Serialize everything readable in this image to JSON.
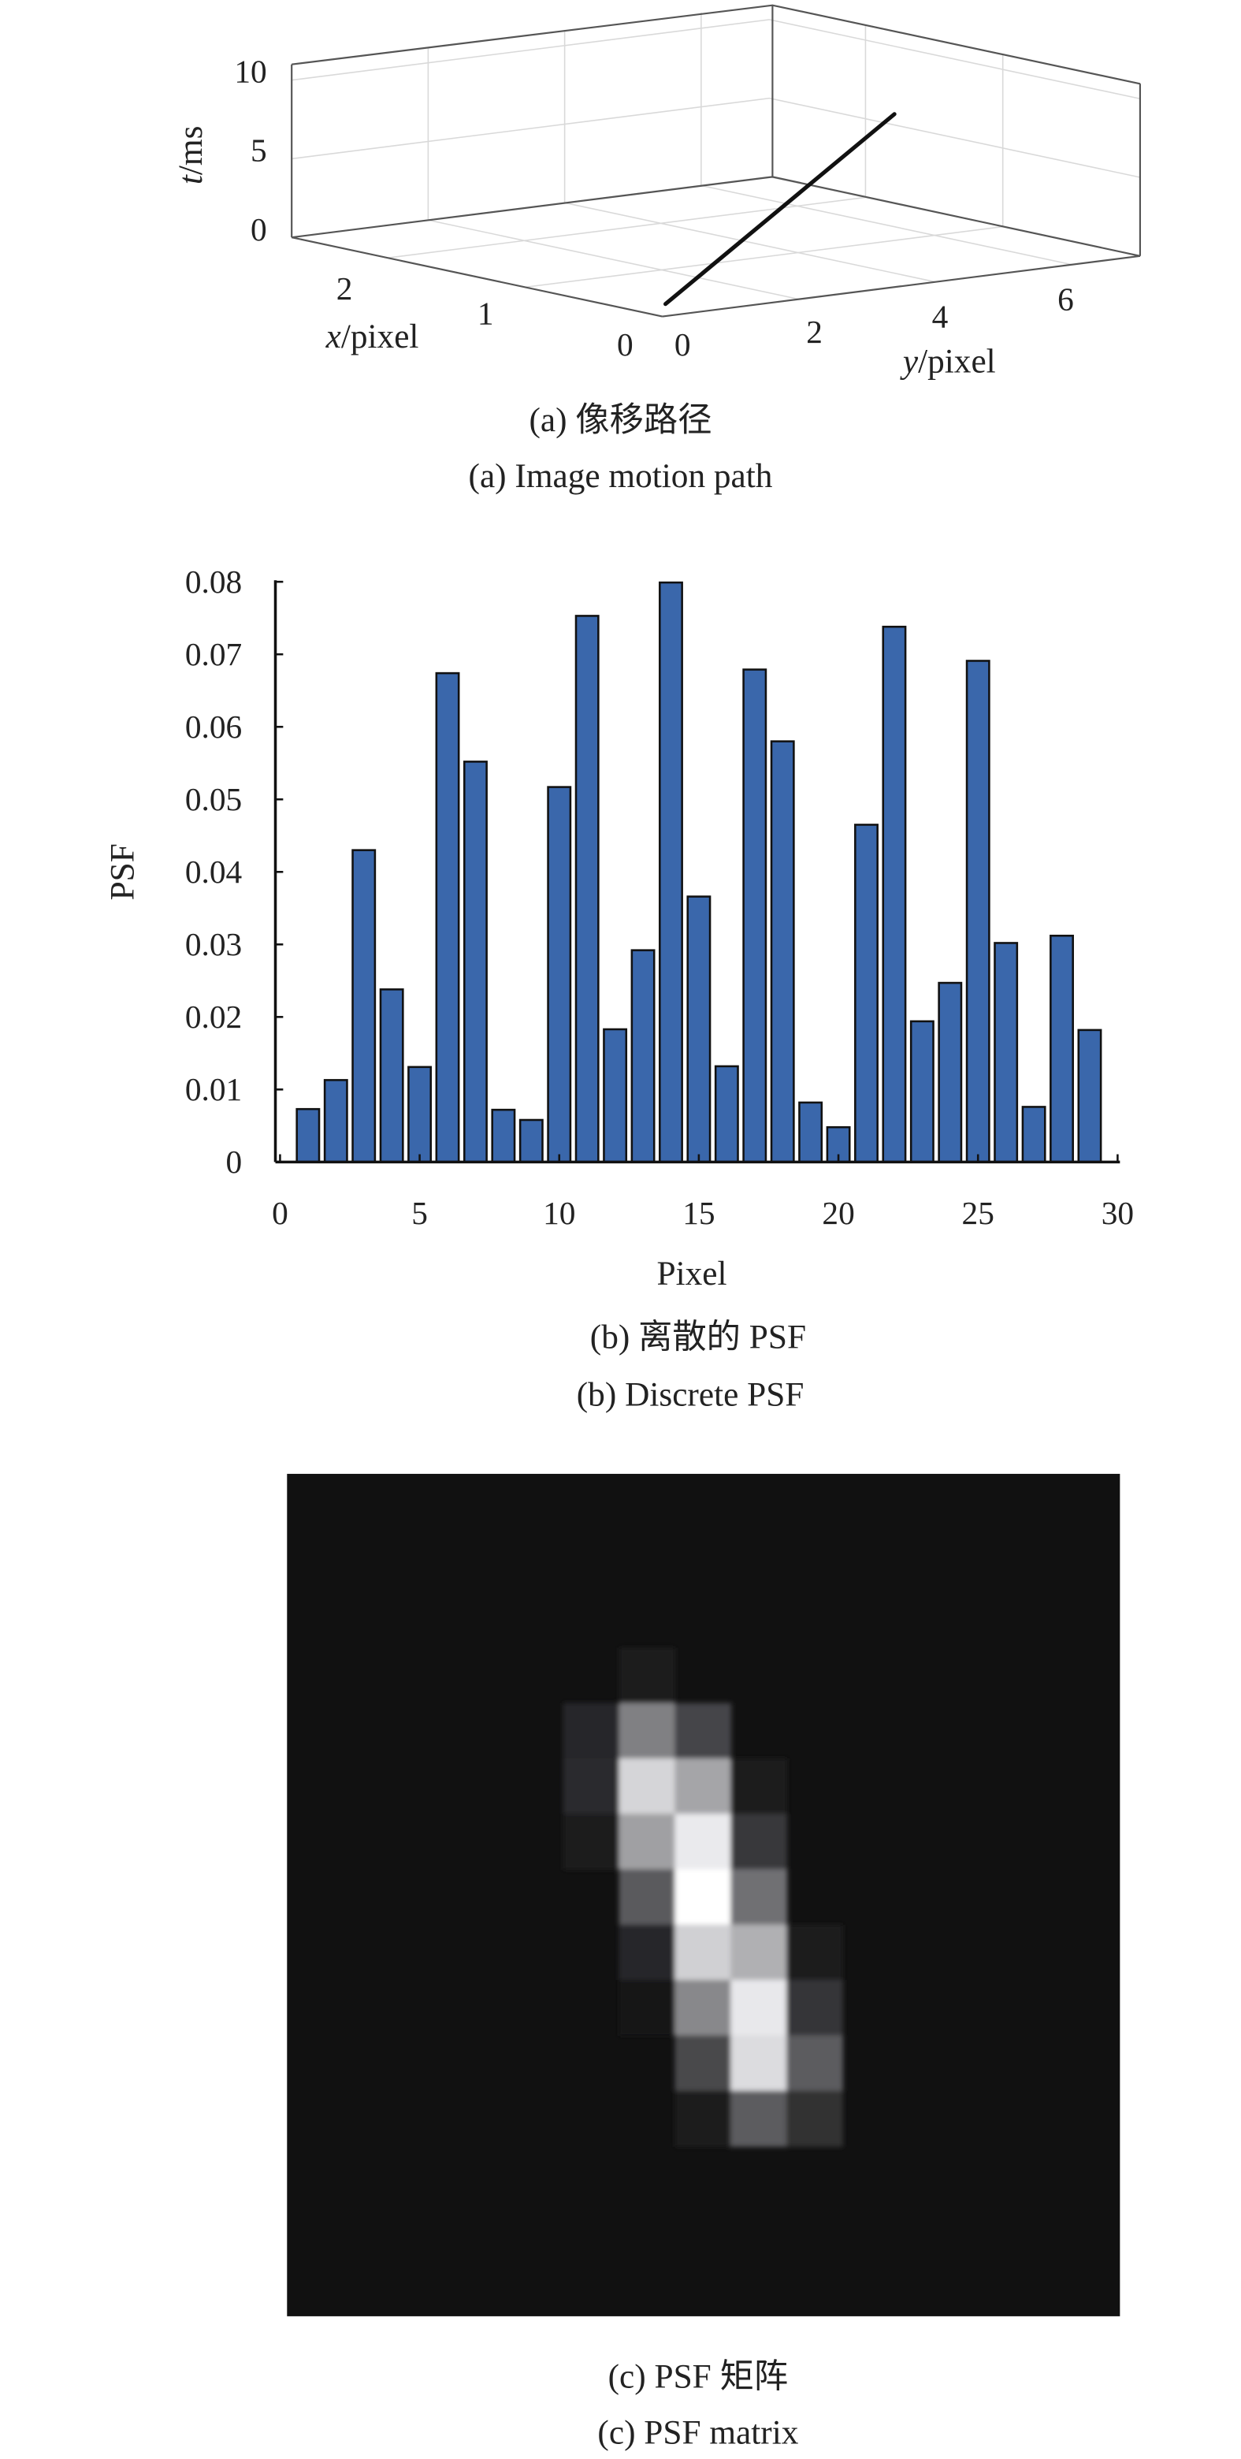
{
  "chart_data": [
    {
      "type": "line3d",
      "xlabel_var": "x",
      "xlabel_unit": "/pixel",
      "ylabel_var": "y",
      "ylabel_unit": "/pixel",
      "zlabel_var": "t",
      "zlabel_unit": "/ms",
      "x_ticks": [
        "0",
        "1",
        "2"
      ],
      "y_ticks": [
        "0",
        "2",
        "4",
        "6"
      ],
      "z_ticks": [
        "0",
        "5",
        "10"
      ],
      "xlim": [
        0,
        2.7
      ],
      "ylim": [
        0,
        7
      ],
      "zlim": [
        0,
        11
      ],
      "path": [
        {
          "x": 0,
          "y": 0,
          "t": 0
        },
        {
          "x": 0,
          "y": 3.4,
          "t": 11
        }
      ],
      "grid": true,
      "line_color": "#111111",
      "caption_cn": "(a) 像移路径",
      "caption_en": "(a) Image motion path"
    },
    {
      "type": "bar",
      "xlabel": "Pixel",
      "ylabel": "PSF",
      "x": [
        1,
        2,
        3,
        4,
        5,
        6,
        7,
        8,
        9,
        10,
        11,
        12,
        13,
        14,
        15,
        16,
        17,
        18,
        19,
        20,
        21,
        22,
        23,
        24,
        25,
        26,
        27,
        28,
        29
      ],
      "values": [
        0.0073,
        0.0113,
        0.043,
        0.0238,
        0.0131,
        0.0674,
        0.0552,
        0.0072,
        0.0058,
        0.0517,
        0.0753,
        0.0183,
        0.0292,
        0.0799,
        0.0366,
        0.0132,
        0.0679,
        0.058,
        0.0082,
        0.0048,
        0.0465,
        0.0738,
        0.0194,
        0.0247,
        0.0691,
        0.0302,
        0.0076,
        0.0312,
        0.0182
      ],
      "xlim": [
        0,
        30
      ],
      "ylim": [
        0,
        0.08
      ],
      "x_ticks": [
        "0",
        "5",
        "10",
        "15",
        "20",
        "25",
        "30"
      ],
      "y_ticks": [
        "0",
        "0.01",
        "0.02",
        "0.03",
        "0.04",
        "0.05",
        "0.06",
        "0.07",
        "0.08"
      ],
      "bar_color": "#3a67ab",
      "grid": false,
      "caption_cn": "(b) 离散的 PSF",
      "caption_en": "(b) Discrete PSF"
    },
    {
      "type": "heatmap",
      "colormap": "gray",
      "background": 17,
      "psf_matrix": [
        [
          17,
          26,
          17,
          17,
          17
        ],
        [
          38,
          128,
          69,
          17,
          17
        ],
        [
          42,
          213,
          165,
          26,
          17
        ],
        [
          28,
          160,
          234,
          56,
          17
        ],
        [
          17,
          90,
          255,
          112,
          17
        ],
        [
          17,
          40,
          208,
          176,
          26
        ],
        [
          17,
          20,
          136,
          232,
          53
        ],
        [
          17,
          17,
          72,
          220,
          92
        ],
        [
          17,
          17,
          28,
          92,
          48
        ]
      ],
      "caption_cn": "(c) PSF 矩阵",
      "caption_en": "(c) PSF matrix"
    }
  ]
}
